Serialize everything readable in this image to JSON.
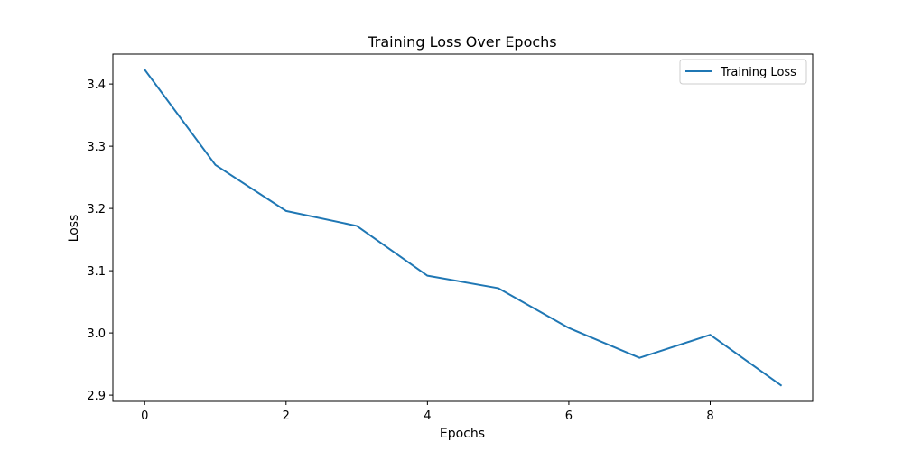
{
  "chart_data": {
    "type": "line",
    "title": "Training Loss Over Epochs",
    "xlabel": "Epochs",
    "ylabel": "Loss",
    "x": [
      0,
      1,
      2,
      3,
      4,
      5,
      6,
      7,
      8,
      9
    ],
    "series": [
      {
        "name": "Training Loss",
        "values": [
          3.423,
          3.27,
          3.196,
          3.172,
          3.092,
          3.072,
          3.008,
          2.96,
          2.997,
          2.916
        ],
        "color": "#1f77b4"
      }
    ],
    "xlim": [
      -0.45,
      9.45
    ],
    "ylim": [
      2.89,
      3.448
    ],
    "xticks": [
      0,
      2,
      4,
      6,
      8
    ],
    "xtick_labels": [
      "0",
      "2",
      "4",
      "6",
      "8"
    ],
    "yticks": [
      2.9,
      3.0,
      3.1,
      3.2,
      3.3,
      3.4
    ],
    "ytick_labels": [
      "2.9",
      "3.0",
      "3.1",
      "3.2",
      "3.3",
      "3.4"
    ],
    "grid": false,
    "legend": {
      "placement": "top-right",
      "entries": [
        "Training Loss"
      ]
    }
  }
}
